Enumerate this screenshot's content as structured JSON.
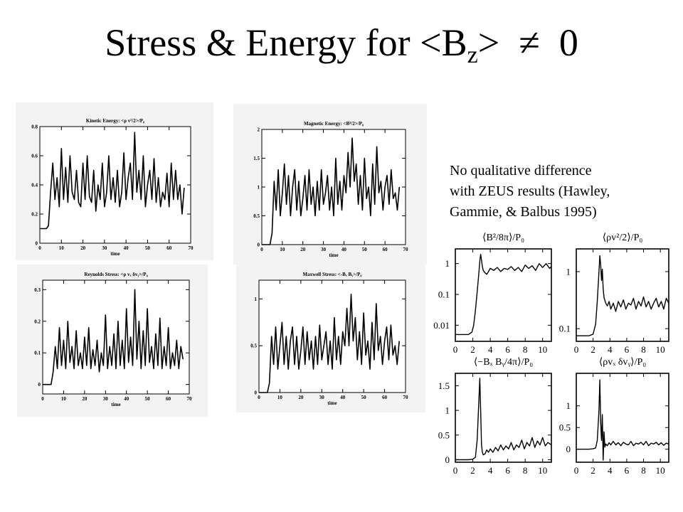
{
  "slide": {
    "title_main": "Stress & Energy for <B",
    "title_sub": "z",
    "title_tail": ">",
    "title_ne": "≠",
    "title_zero": "0",
    "note_lines": [
      "No qualitative difference",
      "with ZEUS results (Hawley,",
      "Gammie, & Balbus 1995)"
    ]
  },
  "chart_data": [
    {
      "type": "line",
      "id": "kinetic",
      "title": "Kinetic Energy: <ρ v²/2>/P₀",
      "xlabel": "time",
      "xlim": [
        0,
        70
      ],
      "xticks": [
        0,
        10,
        20,
        30,
        40,
        50,
        60,
        70
      ],
      "ylim": [
        0,
        0.8
      ],
      "yticks": [
        0,
        0.2,
        0.4,
        0.6,
        0.8
      ],
      "ytick_labels": [
        "0",
        "0.2",
        "0.4",
        "0.6",
        "0.8"
      ],
      "grid": false,
      "series": [
        {
          "x": [
            0,
            1,
            2,
            3,
            4,
            5,
            6,
            7,
            8,
            9,
            10,
            11,
            12,
            13,
            14,
            15,
            16,
            17,
            18,
            19,
            20,
            21,
            22,
            23,
            24,
            25,
            26,
            27,
            28,
            29,
            30,
            31,
            32,
            33,
            34,
            35,
            36,
            37,
            38,
            39,
            40,
            41,
            42,
            43,
            44,
            45,
            46,
            47,
            48,
            49,
            50,
            51,
            52,
            53,
            54,
            55,
            56,
            57,
            58,
            59,
            60,
            61,
            62,
            63,
            64,
            65,
            66,
            67
          ],
          "y": [
            0.1,
            0.1,
            0.1,
            0.1,
            0.12,
            0.35,
            0.55,
            0.3,
            0.45,
            0.25,
            0.65,
            0.3,
            0.52,
            0.28,
            0.6,
            0.35,
            0.3,
            0.5,
            0.28,
            0.25,
            0.55,
            0.3,
            0.6,
            0.32,
            0.28,
            0.5,
            0.22,
            0.4,
            0.3,
            0.55,
            0.25,
            0.35,
            0.6,
            0.3,
            0.45,
            0.28,
            0.5,
            0.25,
            0.35,
            0.62,
            0.3,
            0.45,
            0.55,
            0.3,
            0.76,
            0.35,
            0.5,
            0.3,
            0.6,
            0.25,
            0.4,
            0.5,
            0.3,
            0.58,
            0.28,
            0.45,
            0.25,
            0.35,
            0.3,
            0.48,
            0.25,
            0.55,
            0.3,
            0.5,
            0.3,
            0.4,
            0.2,
            0.38
          ]
        }
      ]
    },
    {
      "type": "line",
      "id": "magnetic",
      "title": "Magnetic Energy: <B²/2>/P₀",
      "xlabel": "time",
      "xlim": [
        0,
        70
      ],
      "xticks": [
        0,
        10,
        20,
        30,
        40,
        50,
        60,
        70
      ],
      "ylim": [
        0,
        2
      ],
      "yticks": [
        0,
        0.5,
        1,
        1.5,
        2
      ],
      "ytick_labels": [
        "0",
        "0.5",
        "1",
        "1.5",
        "2"
      ],
      "grid": false,
      "series": [
        {
          "x": [
            0,
            1,
            2,
            3,
            4,
            5,
            6,
            7,
            8,
            9,
            10,
            11,
            12,
            13,
            14,
            15,
            16,
            17,
            18,
            19,
            20,
            21,
            22,
            23,
            24,
            25,
            26,
            27,
            28,
            29,
            30,
            31,
            32,
            33,
            34,
            35,
            36,
            37,
            38,
            39,
            40,
            41,
            42,
            43,
            44,
            45,
            46,
            47,
            48,
            49,
            50,
            51,
            52,
            53,
            54,
            55,
            56,
            57,
            58,
            59,
            60,
            61,
            62,
            63,
            64,
            65,
            66,
            67
          ],
          "y": [
            0,
            0,
            0,
            0,
            0,
            0.2,
            1.1,
            0.6,
            1.3,
            0.5,
            0.9,
            1.4,
            0.7,
            1.2,
            0.5,
            1.0,
            1.3,
            0.6,
            1.1,
            0.5,
            0.8,
            1.2,
            0.6,
            1.3,
            0.7,
            1.0,
            0.5,
            1.1,
            0.6,
            1.3,
            0.7,
            0.9,
            1.2,
            0.6,
            1.0,
            0.5,
            1.5,
            0.7,
            1.1,
            0.6,
            1.2,
            0.9,
            1.6,
            1.0,
            1.85,
            1.1,
            1.4,
            0.7,
            1.2,
            0.6,
            1.5,
            0.8,
            1.0,
            0.5,
            1.4,
            0.7,
            1.7,
            0.9,
            1.1,
            0.6,
            1.0,
            1.2,
            0.7,
            1.3,
            0.8,
            0.9,
            0.6,
            1.0
          ]
        }
      ]
    },
    {
      "type": "line",
      "id": "reynolds",
      "title": "Reynolds Stress: <ρ vₓ δvᵧ>/P₀",
      "xlabel": "time",
      "xlim": [
        0,
        70
      ],
      "xticks": [
        0,
        10,
        20,
        30,
        40,
        50,
        60,
        70
      ],
      "ylim": [
        -0.03,
        0.33
      ],
      "yticks": [
        0,
        0.1,
        0.2,
        0.3
      ],
      "ytick_labels": [
        "0",
        "0.1",
        "0.2",
        "0.3"
      ],
      "grid": false,
      "series": [
        {
          "x": [
            0,
            1,
            2,
            3,
            4,
            5,
            6,
            7,
            8,
            9,
            10,
            11,
            12,
            13,
            14,
            15,
            16,
            17,
            18,
            19,
            20,
            21,
            22,
            23,
            24,
            25,
            26,
            27,
            28,
            29,
            30,
            31,
            32,
            33,
            34,
            35,
            36,
            37,
            38,
            39,
            40,
            41,
            42,
            43,
            44,
            45,
            46,
            47,
            48,
            49,
            50,
            51,
            52,
            53,
            54,
            55,
            56,
            57,
            58,
            59,
            60,
            61,
            62,
            63,
            64,
            65,
            66,
            67
          ],
          "y": [
            0,
            0,
            0,
            0,
            0.0,
            0.04,
            0.12,
            0.05,
            0.18,
            0.06,
            0.14,
            0.05,
            0.2,
            0.07,
            0.12,
            0.05,
            0.17,
            0.06,
            0.1,
            0.05,
            0.15,
            0.06,
            0.18,
            0.05,
            0.11,
            0.06,
            0.14,
            0.04,
            0.1,
            0.06,
            0.22,
            0.05,
            0.12,
            0.06,
            0.16,
            0.05,
            0.2,
            0.06,
            0.14,
            0.05,
            0.24,
            0.07,
            0.15,
            0.06,
            0.3,
            0.08,
            0.2,
            0.05,
            0.17,
            0.06,
            0.24,
            0.07,
            0.12,
            0.05,
            0.16,
            0.06,
            0.21,
            0.05,
            0.12,
            0.06,
            0.18,
            0.05,
            0.1,
            0.06,
            0.14,
            0.05,
            0.12,
            0.08
          ]
        }
      ]
    },
    {
      "type": "line",
      "id": "maxwell",
      "title": "Maxwell Stress: <-Bₓ Bᵧ>/P₀",
      "xlabel": "time",
      "xlim": [
        0,
        70
      ],
      "xticks": [
        0,
        10,
        20,
        30,
        40,
        50,
        60,
        70
      ],
      "ylim": [
        0,
        1.2
      ],
      "yticks": [
        0,
        0.5,
        1
      ],
      "ytick_labels": [
        "0",
        "0.5",
        "1"
      ],
      "grid": false,
      "series": [
        {
          "x": [
            0,
            1,
            2,
            3,
            4,
            5,
            6,
            7,
            8,
            9,
            10,
            11,
            12,
            13,
            14,
            15,
            16,
            17,
            18,
            19,
            20,
            21,
            22,
            23,
            24,
            25,
            26,
            27,
            28,
            29,
            30,
            31,
            32,
            33,
            34,
            35,
            36,
            37,
            38,
            39,
            40,
            41,
            42,
            43,
            44,
            45,
            46,
            47,
            48,
            49,
            50,
            51,
            52,
            53,
            54,
            55,
            56,
            57,
            58,
            59,
            60,
            61,
            62,
            63,
            64,
            65,
            66,
            67
          ],
          "y": [
            0,
            0,
            0,
            0,
            0,
            0.1,
            0.6,
            0.3,
            0.7,
            0.25,
            0.5,
            0.75,
            0.3,
            0.6,
            0.25,
            0.55,
            0.7,
            0.3,
            0.6,
            0.25,
            0.45,
            0.7,
            0.3,
            0.65,
            0.35,
            0.55,
            0.25,
            0.6,
            0.3,
            0.72,
            0.35,
            0.5,
            0.65,
            0.3,
            0.55,
            0.25,
            0.8,
            0.35,
            0.6,
            0.3,
            0.65,
            0.5,
            0.9,
            0.5,
            1.05,
            0.55,
            0.8,
            0.35,
            0.65,
            0.3,
            0.85,
            0.4,
            0.55,
            0.25,
            0.75,
            0.35,
            0.95,
            0.45,
            0.6,
            0.3,
            0.55,
            0.7,
            0.35,
            0.72,
            0.4,
            0.5,
            0.3,
            0.55
          ]
        }
      ]
    },
    {
      "type": "line",
      "id": "zeus_magnetic",
      "title": "⟨B²/8π⟩/P₀",
      "xlabel": "",
      "xlim": [
        0,
        11
      ],
      "xticks": [
        0,
        2,
        4,
        6,
        8,
        10
      ],
      "ylim": [
        0.003,
        3
      ],
      "yscale": "log",
      "yticks": [
        0.01,
        0.1,
        1
      ],
      "ytick_labels": [
        "0.01",
        "0.1",
        "1"
      ],
      "grid": false,
      "series": [
        {
          "x": [
            0,
            0.5,
            1,
            1.5,
            1.9,
            2.1,
            2.3,
            2.5,
            2.7,
            2.8,
            2.9,
            3.0,
            3.1,
            3.2,
            3.4,
            3.6,
            3.8,
            4.0,
            4.4,
            4.8,
            5.2,
            5.6,
            6.0,
            6.4,
            6.8,
            7.2,
            7.6,
            8.0,
            8.4,
            8.8,
            9.2,
            9.6,
            10.0,
            10.4,
            10.8,
            11.0
          ],
          "y": [
            0.005,
            0.005,
            0.005,
            0.005,
            0.006,
            0.01,
            0.03,
            0.12,
            0.5,
            1.2,
            2.0,
            1.3,
            0.8,
            0.6,
            0.5,
            0.45,
            0.55,
            0.7,
            0.6,
            0.75,
            0.55,
            0.7,
            0.65,
            0.8,
            0.6,
            0.75,
            0.55,
            0.9,
            0.7,
            0.85,
            0.6,
            1.0,
            0.75,
            1.0,
            0.7,
            0.8
          ]
        }
      ]
    },
    {
      "type": "line",
      "id": "zeus_kinetic",
      "title": "⟨ρv²/2⟩/P₀",
      "xlabel": "",
      "xlim": [
        0,
        11
      ],
      "xticks": [
        0,
        2,
        4,
        6,
        8,
        10
      ],
      "ylim": [
        0.06,
        2.5
      ],
      "yscale": "log",
      "yticks": [
        0.1,
        1
      ],
      "ytick_labels": [
        "0.1",
        "1"
      ],
      "grid": false,
      "series": [
        {
          "x": [
            0,
            0.5,
            1,
            1.5,
            2.0,
            2.3,
            2.5,
            2.7,
            2.8,
            2.9,
            3.0,
            3.1,
            3.2,
            3.3,
            3.5,
            3.7,
            3.9,
            4.1,
            4.4,
            4.7,
            5.0,
            5.3,
            5.6,
            5.9,
            6.2,
            6.5,
            6.8,
            7.1,
            7.4,
            7.7,
            8.0,
            8.3,
            8.6,
            8.9,
            9.2,
            9.5,
            9.8,
            10.1,
            10.4,
            10.7,
            11.0
          ],
          "y": [
            0.075,
            0.075,
            0.075,
            0.075,
            0.08,
            0.12,
            0.3,
            1.0,
            1.9,
            1.3,
            0.7,
            1.1,
            0.5,
            0.35,
            0.28,
            0.25,
            0.3,
            0.22,
            0.28,
            0.2,
            0.3,
            0.24,
            0.32,
            0.22,
            0.28,
            0.26,
            0.34,
            0.22,
            0.3,
            0.25,
            0.36,
            0.24,
            0.3,
            0.22,
            0.28,
            0.34,
            0.24,
            0.3,
            0.22,
            0.34,
            0.28
          ]
        }
      ]
    },
    {
      "type": "line",
      "id": "zeus_maxwell",
      "title": "⟨−Bₓ Bᵧ/4π⟩/P₀",
      "xlabel": "",
      "xlim": [
        0,
        11
      ],
      "xticks": [
        0,
        2,
        4,
        6,
        8,
        10
      ],
      "ylim": [
        -0.05,
        1.75
      ],
      "yticks": [
        0,
        0.5,
        1,
        1.5
      ],
      "ytick_labels": [
        "0",
        "0.5",
        "1",
        "1.5"
      ],
      "grid": false,
      "series": [
        {
          "x": [
            0,
            0.5,
            1,
            1.5,
            2.0,
            2.3,
            2.5,
            2.7,
            2.8,
            2.9,
            3.0,
            3.1,
            3.2,
            3.4,
            3.6,
            3.8,
            4.0,
            4.3,
            4.6,
            4.9,
            5.2,
            5.5,
            5.8,
            6.1,
            6.4,
            6.7,
            7.0,
            7.3,
            7.6,
            7.9,
            8.2,
            8.5,
            8.8,
            9.1,
            9.4,
            9.7,
            10.0,
            10.3,
            10.6,
            11.0
          ],
          "y": [
            0,
            0,
            0,
            0,
            0.01,
            0.05,
            0.4,
            1.2,
            1.65,
            1.0,
            0.3,
            0.15,
            0.1,
            0.12,
            0.2,
            0.15,
            0.22,
            0.15,
            0.25,
            0.18,
            0.3,
            0.2,
            0.28,
            0.22,
            0.35,
            0.2,
            0.3,
            0.25,
            0.4,
            0.22,
            0.35,
            0.28,
            0.45,
            0.25,
            0.38,
            0.3,
            0.45,
            0.28,
            0.35,
            0.3
          ]
        }
      ]
    },
    {
      "type": "line",
      "id": "zeus_reynolds",
      "title": "⟨ρvₓ δvᵧ⟩/P₀",
      "xlabel": "",
      "xlim": [
        0,
        11
      ],
      "xticks": [
        0,
        2,
        4,
        6,
        8,
        10
      ],
      "ylim": [
        -0.3,
        1.75
      ],
      "yticks": [
        0,
        0.5,
        1
      ],
      "ytick_labels": [
        "0",
        "0.5",
        "1"
      ],
      "grid": false,
      "series": [
        {
          "x": [
            0,
            0.5,
            1,
            1.5,
            2.0,
            2.3,
            2.5,
            2.7,
            2.8,
            2.9,
            3.0,
            3.1,
            3.2,
            3.3,
            3.4,
            3.5,
            3.7,
            3.9,
            4.1,
            4.4,
            4.7,
            5.0,
            5.3,
            5.6,
            5.9,
            6.2,
            6.5,
            6.8,
            7.1,
            7.4,
            7.7,
            8.0,
            8.3,
            8.6,
            8.9,
            9.2,
            9.5,
            9.8,
            10.1,
            10.4,
            10.7,
            11.0
          ],
          "y": [
            0,
            0,
            0,
            0,
            0.01,
            0.03,
            0.2,
            0.9,
            1.6,
            0.6,
            0.2,
            0.8,
            -0.25,
            0.4,
            0.05,
            0.12,
            0.08,
            0.15,
            0.1,
            0.18,
            0.1,
            0.15,
            0.08,
            0.16,
            0.12,
            0.1,
            0.18,
            0.08,
            0.14,
            0.12,
            0.16,
            0.1,
            0.18,
            0.08,
            0.14,
            0.12,
            0.16,
            0.1,
            0.15,
            0.09,
            0.14,
            0.12
          ]
        }
      ]
    }
  ]
}
